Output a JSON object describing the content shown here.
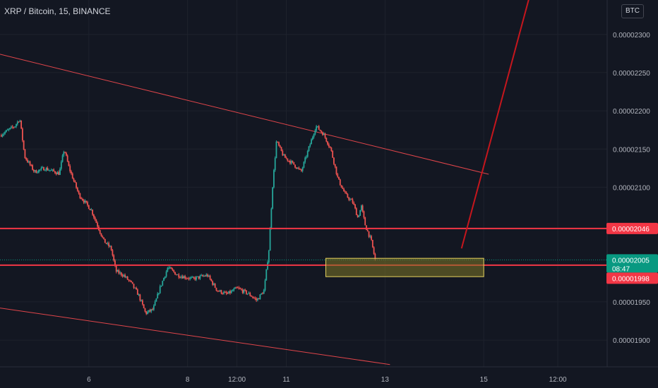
{
  "header": {
    "symbol_title": "XRP / Bitcoin, 15, BINANCE",
    "currency_badge": "BTC"
  },
  "colors": {
    "background": "#131722",
    "grid": "#1e222d",
    "candle_up": "#26a69a",
    "candle_down": "#ef5350",
    "trendline": "#e0454a",
    "level_line": "#f23645",
    "arrow": "#c5161d",
    "zone_fill": "#7d7627",
    "zone_border": "#e6d35f",
    "current_price_bg": "#089981",
    "level_label_bg": "#f23645"
  },
  "chart_data": {
    "type": "candlestick",
    "symbol": "XRP / Bitcoin",
    "interval": "15",
    "exchange": "BINANCE",
    "y_axis": {
      "ticks": [
        "0.00002300",
        "0.00002250",
        "0.00002200",
        "0.00002150",
        "0.00002100",
        "0.00001950",
        "0.00001900"
      ],
      "tick_values": [
        2.3e-05,
        2.25e-05,
        2.2e-05,
        2.15e-05,
        2.1e-05,
        1.95e-05,
        1.9e-05
      ],
      "range": [
        1.865e-05,
        2.345e-05
      ]
    },
    "x_axis": {
      "ticks": [
        "6",
        "8",
        "12:00",
        "11",
        "13",
        "15",
        "12:00"
      ],
      "tick_positions": [
        4.0,
        6.0,
        7.0,
        8.0,
        10.0,
        12.0,
        13.5
      ],
      "range": [
        2.2,
        14.5
      ]
    },
    "price_path": [
      [
        2.2,
        2.168e-05
      ],
      [
        2.5,
        2.18e-05
      ],
      [
        2.6,
        2.19e-05
      ],
      [
        2.7,
        2.14e-05
      ],
      [
        2.9,
        2.12e-05
      ],
      [
        3.1,
        2.125e-05
      ],
      [
        3.4,
        2.118e-05
      ],
      [
        3.5,
        2.15e-05
      ],
      [
        3.6,
        2.125e-05
      ],
      [
        3.8,
        2.09e-05
      ],
      [
        4.05,
        2.07e-05
      ],
      [
        4.3,
        2.03e-05
      ],
      [
        4.45,
        2.02e-05
      ],
      [
        4.55,
        1.99e-05
      ],
      [
        4.7,
        1.985e-05
      ],
      [
        4.85,
        1.975e-05
      ],
      [
        5.0,
        1.96e-05
      ],
      [
        5.15,
        1.935e-05
      ],
      [
        5.3,
        1.94e-05
      ],
      [
        5.45,
        1.97e-05
      ],
      [
        5.6,
        1.995e-05
      ],
      [
        5.8,
        1.985e-05
      ],
      [
        6.1,
        1.98e-05
      ],
      [
        6.4,
        1.985e-05
      ],
      [
        6.6,
        1.965e-05
      ],
      [
        6.8,
        1.96e-05
      ],
      [
        7.0,
        1.968e-05
      ],
      [
        7.25,
        1.96e-05
      ],
      [
        7.4,
        1.952e-05
      ],
      [
        7.55,
        1.965e-05
      ],
      [
        7.65,
        2.02e-05
      ],
      [
        7.72,
        2.1e-05
      ],
      [
        7.8,
        2.16e-05
      ],
      [
        7.95,
        2.14e-05
      ],
      [
        8.15,
        2.13e-05
      ],
      [
        8.3,
        2.12e-05
      ],
      [
        8.45,
        2.15e-05
      ],
      [
        8.6,
        2.18e-05
      ],
      [
        8.75,
        2.17e-05
      ],
      [
        8.9,
        2.15e-05
      ],
      [
        9.05,
        2.11e-05
      ],
      [
        9.2,
        2.09e-05
      ],
      [
        9.35,
        2.08e-05
      ],
      [
        9.45,
        2.06e-05
      ],
      [
        9.52,
        2.075e-05
      ],
      [
        9.6,
        2.05e-05
      ],
      [
        9.72,
        2.03e-05
      ],
      [
        9.8,
        2.005e-05
      ]
    ],
    "last_price": "0.00002005",
    "countdown": "08:47",
    "horizontal_levels": [
      {
        "price": 2.046e-05,
        "label": "0.00002046"
      },
      {
        "price": 1.998e-05,
        "label": "0.00001998"
      }
    ],
    "trendlines": [
      {
        "from": [
          2.2,
          2.274e-05
        ],
        "to": [
          12.1,
          2.117e-05
        ]
      },
      {
        "from": [
          2.2,
          1.942e-05
        ],
        "to": [
          10.1,
          1.868e-05
        ]
      }
    ],
    "zone": {
      "x_from": 8.8,
      "x_to": 12.0,
      "price_top": 2.007e-05,
      "price_bottom": 1.983e-05
    },
    "arrow": {
      "from": [
        11.55,
        2.02e-05
      ],
      "to": [
        12.95,
        2.355e-05
      ]
    }
  }
}
